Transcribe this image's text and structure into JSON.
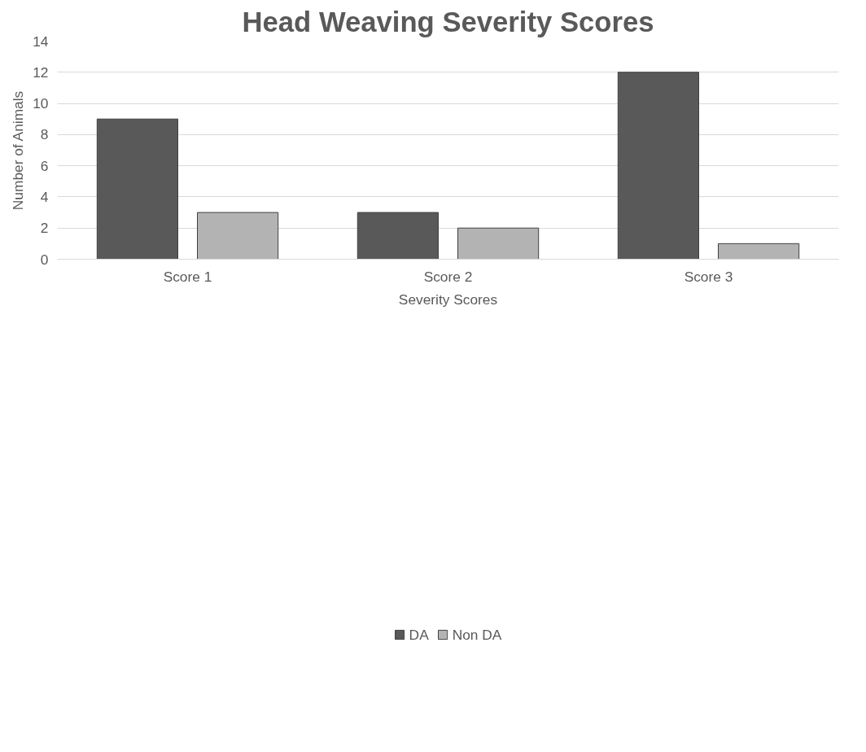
{
  "chart_data": {
    "type": "bar",
    "title": "Head Weaving Severity Scores",
    "xlabel": "Severity Scores",
    "ylabel": "Number of Animals",
    "categories": [
      "Score 1",
      "Score 2",
      "Score 3"
    ],
    "series": [
      {
        "name": "DA",
        "color": "#595959",
        "values": [
          9,
          3,
          12
        ]
      },
      {
        "name": "Non DA",
        "color": "#b3b3b3",
        "values": [
          3,
          2,
          1
        ]
      }
    ],
    "ylim": [
      0,
      14
    ],
    "yticks": [
      0,
      2,
      4,
      6,
      8,
      10,
      12,
      14
    ],
    "grid": "y",
    "legend": "bottom"
  }
}
